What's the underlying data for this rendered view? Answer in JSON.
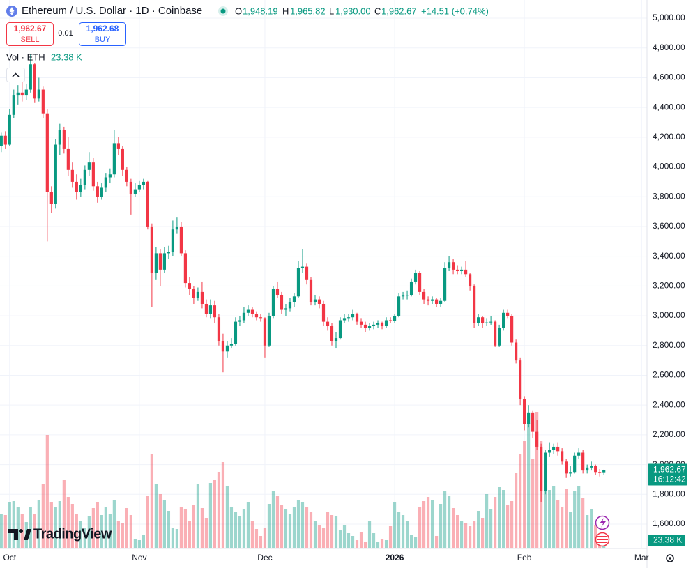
{
  "header": {
    "symbol": "Ethereum / U.S. Dollar · 1D · Coinbase",
    "o_label": "O",
    "o": "1,948.19",
    "h_label": "H",
    "h": "1,965.82",
    "l_label": "L",
    "l": "1,930.00",
    "c_label": "C",
    "c": "1,962.67",
    "change": "+14.51 (+0.74%)"
  },
  "trade": {
    "sell_price": "1,962.67",
    "sell": "SELL",
    "spread": "0.01",
    "buy_price": "1,962.68",
    "buy": "BUY"
  },
  "volume_legend": {
    "label": "Vol · ETH",
    "value": "23.38 K"
  },
  "price_tag": {
    "price": "1,962.67",
    "countdown": "16:12:42"
  },
  "volume_tag": "23.38 K",
  "logo": "TradingView",
  "chart_data": {
    "type": "candlestick",
    "up_color": "#089981",
    "down_color": "#f23645",
    "grid": true,
    "xlim": [
      -0.3,
      154.3
    ],
    "ylim": [
      1436,
      5122
    ],
    "volume_lim": [
      0,
      1574000
    ],
    "xticks": [
      {
        "value": 2,
        "label": "Oct"
      },
      {
        "value": 33,
        "label": "Nov"
      },
      {
        "value": 63,
        "label": "Dec"
      },
      {
        "value": 94,
        "label": "2026"
      },
      {
        "value": 125,
        "label": "Feb"
      },
      {
        "value": 153,
        "label": "Mar"
      }
    ],
    "yticks": [
      {
        "value": 1600,
        "label": "1,600.00"
      },
      {
        "value": 1800,
        "label": "1,800.00"
      },
      {
        "value": 2000,
        "label": "2,000.00"
      },
      {
        "value": 2200,
        "label": "2,200.00"
      },
      {
        "value": 2400,
        "label": "2,400.00"
      },
      {
        "value": 2600,
        "label": "2,600.00"
      },
      {
        "value": 2800,
        "label": "2,800.00"
      },
      {
        "value": 3000,
        "label": "3,000.00"
      },
      {
        "value": 3200,
        "label": "3,200.00"
      },
      {
        "value": 3400,
        "label": "3,400.00"
      },
      {
        "value": 3600,
        "label": "3,600.00"
      },
      {
        "value": 3800,
        "label": "3,800.00"
      },
      {
        "value": 4000,
        "label": "4,000.00"
      },
      {
        "value": 4200,
        "label": "4,200.00"
      },
      {
        "value": 4400,
        "label": "4,400.00"
      },
      {
        "value": 4600,
        "label": "4,600.00"
      },
      {
        "value": 4800,
        "label": "4,800.00"
      },
      {
        "value": 5000,
        "label": "5,000.00"
      }
    ],
    "ohlc": [
      [
        4140,
        4230,
        4100,
        4210
      ],
      [
        4210,
        4240,
        4120,
        4150
      ],
      [
        4150,
        4390,
        4140,
        4350
      ],
      [
        4350,
        4520,
        4330,
        4480
      ],
      [
        4480,
        4550,
        4420,
        4500
      ],
      [
        4500,
        4600,
        4440,
        4480
      ],
      [
        4480,
        4560,
        4450,
        4520
      ],
      [
        4520,
        4760,
        4500,
        4690
      ],
      [
        4690,
        4700,
        4430,
        4460
      ],
      [
        4460,
        4600,
        4440,
        4520
      ],
      [
        4520,
        4540,
        4330,
        4360
      ],
      [
        4360,
        4390,
        3500,
        3830
      ],
      [
        3830,
        3870,
        3690,
        3750
      ],
      [
        3750,
        4190,
        3720,
        4150
      ],
      [
        4150,
        4290,
        4080,
        4250
      ],
      [
        4250,
        4270,
        4090,
        4120
      ],
      [
        4120,
        4200,
        3940,
        3980
      ],
      [
        3980,
        4030,
        3860,
        3900
      ],
      [
        3900,
        3950,
        3780,
        3830
      ],
      [
        3830,
        3920,
        3800,
        3880
      ],
      [
        3880,
        4010,
        3850,
        3980
      ],
      [
        3980,
        4100,
        3940,
        4030
      ],
      [
        4030,
        4060,
        3840,
        3870
      ],
      [
        3870,
        3900,
        3760,
        3800
      ],
      [
        3800,
        3890,
        3780,
        3860
      ],
      [
        3860,
        3960,
        3830,
        3930
      ],
      [
        3930,
        3990,
        3890,
        3950
      ],
      [
        3950,
        4250,
        3930,
        4160
      ],
      [
        4160,
        4200,
        4080,
        4120
      ],
      [
        4120,
        4140,
        3940,
        3980
      ],
      [
        3980,
        4000,
        3870,
        3900
      ],
      [
        3900,
        3920,
        3680,
        3820
      ],
      [
        3820,
        3890,
        3800,
        3850
      ],
      [
        3850,
        3910,
        3830,
        3880
      ],
      [
        3880,
        3920,
        3850,
        3900
      ],
      [
        3900,
        3910,
        3580,
        3600
      ],
      [
        3600,
        3620,
        3060,
        3290
      ],
      [
        3290,
        3460,
        3240,
        3420
      ],
      [
        3420,
        3450,
        3200,
        3310
      ],
      [
        3310,
        3460,
        3290,
        3420
      ],
      [
        3420,
        3470,
        3380,
        3430
      ],
      [
        3430,
        3640,
        3400,
        3580
      ],
      [
        3580,
        3660,
        3550,
        3600
      ],
      [
        3600,
        3630,
        3400,
        3420
      ],
      [
        3420,
        3440,
        3190,
        3220
      ],
      [
        3220,
        3260,
        3140,
        3180
      ],
      [
        3180,
        3200,
        3080,
        3120
      ],
      [
        3120,
        3190,
        3100,
        3160
      ],
      [
        3160,
        3230,
        3050,
        3080
      ],
      [
        3080,
        3110,
        2990,
        3010
      ],
      [
        3010,
        3110,
        2980,
        3070
      ],
      [
        3070,
        3100,
        2950,
        2990
      ],
      [
        2990,
        3010,
        2800,
        2830
      ],
      [
        2830,
        2880,
        2620,
        2760
      ],
      [
        2760,
        2830,
        2720,
        2800
      ],
      [
        2800,
        2850,
        2780,
        2810
      ],
      [
        2810,
        2990,
        2800,
        2960
      ],
      [
        2960,
        3000,
        2930,
        2970
      ],
      [
        2970,
        3060,
        2950,
        3020
      ],
      [
        3020,
        3070,
        3000,
        3040
      ],
      [
        3040,
        3060,
        2990,
        3010
      ],
      [
        3010,
        3030,
        2970,
        2990
      ],
      [
        2990,
        3010,
        2960,
        2980
      ],
      [
        2980,
        2990,
        2720,
        2800
      ],
      [
        2800,
        3020,
        2790,
        3000
      ],
      [
        3000,
        3200,
        2980,
        3180
      ],
      [
        3180,
        3230,
        3120,
        3140
      ],
      [
        3140,
        3160,
        3010,
        3040
      ],
      [
        3040,
        3080,
        3000,
        3050
      ],
      [
        3050,
        3120,
        3030,
        3090
      ],
      [
        3090,
        3150,
        3060,
        3130
      ],
      [
        3130,
        3370,
        3120,
        3320
      ],
      [
        3320,
        3450,
        3290,
        3330
      ],
      [
        3330,
        3350,
        3210,
        3240
      ],
      [
        3240,
        3260,
        3070,
        3090
      ],
      [
        3090,
        3140,
        3070,
        3110
      ],
      [
        3110,
        3130,
        3050,
        3080
      ],
      [
        3080,
        3100,
        2930,
        2960
      ],
      [
        2960,
        2990,
        2900,
        2930
      ],
      [
        2930,
        2950,
        2800,
        2830
      ],
      [
        2830,
        2890,
        2780,
        2850
      ],
      [
        2850,
        2990,
        2840,
        2970
      ],
      [
        2970,
        3010,
        2950,
        2980
      ],
      [
        2980,
        3010,
        2960,
        2990
      ],
      [
        2990,
        3040,
        2970,
        3010
      ],
      [
        3010,
        3020,
        2940,
        2960
      ],
      [
        2960,
        2980,
        2920,
        2940
      ],
      [
        2940,
        2960,
        2890,
        2920
      ],
      [
        2920,
        2950,
        2900,
        2930
      ],
      [
        2930,
        2960,
        2910,
        2940
      ],
      [
        2940,
        2970,
        2920,
        2950
      ],
      [
        2950,
        2960,
        2910,
        2930
      ],
      [
        2930,
        2990,
        2920,
        2970
      ],
      [
        2970,
        2990,
        2950,
        2965
      ],
      [
        2965,
        3010,
        2950,
        3000
      ],
      [
        3000,
        3150,
        2990,
        3130
      ],
      [
        3130,
        3160,
        3110,
        3135
      ],
      [
        3135,
        3170,
        3110,
        3140
      ],
      [
        3140,
        3250,
        3130,
        3230
      ],
      [
        3230,
        3310,
        3210,
        3290
      ],
      [
        3290,
        3300,
        3140,
        3160
      ],
      [
        3160,
        3180,
        3080,
        3110
      ],
      [
        3110,
        3130,
        3070,
        3100
      ],
      [
        3100,
        3130,
        3080,
        3110
      ],
      [
        3110,
        3120,
        3060,
        3080
      ],
      [
        3080,
        3120,
        3060,
        3100
      ],
      [
        3100,
        3360,
        3090,
        3320
      ],
      [
        3320,
        3400,
        3300,
        3360
      ],
      [
        3360,
        3380,
        3280,
        3310
      ],
      [
        3310,
        3340,
        3280,
        3300
      ],
      [
        3300,
        3330,
        3280,
        3310
      ],
      [
        3310,
        3370,
        3260,
        3280
      ],
      [
        3280,
        3290,
        3170,
        3200
      ],
      [
        3200,
        3210,
        2920,
        2950
      ],
      [
        2950,
        3010,
        2930,
        2990
      ],
      [
        2990,
        3000,
        2920,
        2950
      ],
      [
        2950,
        2980,
        2930,
        2955
      ],
      [
        2955,
        3000,
        2940,
        2960
      ],
      [
        2960,
        2970,
        2790,
        2800
      ],
      [
        2800,
        2940,
        2790,
        2920
      ],
      [
        2920,
        3040,
        2900,
        3020
      ],
      [
        3020,
        3040,
        2980,
        3000
      ],
      [
        3000,
        3010,
        2800,
        2820
      ],
      [
        2820,
        2840,
        2680,
        2700
      ],
      [
        2700,
        2720,
        2400,
        2440
      ],
      [
        2440,
        2460,
        2230,
        2270
      ],
      [
        2270,
        2400,
        2250,
        2350
      ],
      [
        2350,
        2360,
        2180,
        2220
      ],
      [
        2220,
        2300,
        2100,
        2120
      ],
      [
        2120,
        2140,
        1750,
        1820
      ],
      [
        1820,
        2100,
        1800,
        2080
      ],
      [
        2080,
        2150,
        2050,
        2100
      ],
      [
        2100,
        2140,
        2070,
        2120
      ],
      [
        2120,
        2150,
        2060,
        2090
      ],
      [
        2090,
        2110,
        2000,
        2020
      ],
      [
        2020,
        2040,
        1910,
        1940
      ],
      [
        1940,
        1990,
        1920,
        1950
      ],
      [
        1950,
        2080,
        1940,
        2060
      ],
      [
        2060,
        2110,
        2040,
        2080
      ],
      [
        2080,
        2100,
        1940,
        1960
      ],
      [
        1960,
        2000,
        1940,
        1980
      ],
      [
        1980,
        2020,
        1960,
        1990
      ],
      [
        1990,
        2000,
        1930,
        1950
      ],
      [
        1950,
        1970,
        1920,
        1948.19
      ],
      [
        1948.19,
        1965.82,
        1930,
        1962.67
      ]
    ],
    "volume": [
      100000,
      96000,
      132000,
      136000,
      120000,
      100000,
      76000,
      120000,
      100000,
      140000,
      184000,
      326000,
      132000,
      120000,
      136000,
      196000,
      148000,
      128000,
      100000,
      80000,
      60000,
      92000,
      116000,
      132000,
      96000,
      120000,
      100000,
      140000,
      80000,
      72000,
      116000,
      96000,
      28000,
      24000,
      40000,
      152000,
      270000,
      184000,
      156000,
      140000,
      108000,
      60000,
      56000,
      120000,
      112000,
      80000,
      124000,
      184000,
      116000,
      88000,
      188000,
      196000,
      220000,
      248000,
      180000,
      120000,
      104000,
      92000,
      112000,
      132000,
      80000,
      56000,
      36000,
      60000,
      128000,
      164000,
      152000,
      124000,
      112000,
      100000,
      120000,
      140000,
      132000,
      120000,
      104000,
      80000,
      68000,
      60000,
      104000,
      96000,
      92000,
      52000,
      68000,
      44000,
      36000,
      24000,
      48000,
      20000,
      80000,
      44000,
      20000,
      28000,
      24000,
      64000,
      132000,
      104000,
      96000,
      80000,
      40000,
      32000,
      120000,
      136000,
      148000,
      140000,
      36000,
      128000,
      164000,
      152000,
      116000,
      96000,
      80000,
      72000,
      64000,
      80000,
      108000,
      88000,
      156000,
      112000,
      148000,
      176000,
      168000,
      124000,
      136000,
      216000,
      272000,
      308000,
      360000,
      256000,
      392000,
      308000,
      228000,
      168000,
      180000,
      140000,
      120000,
      172000,
      104000,
      164000,
      180000,
      144000,
      96000,
      112000,
      68000,
      40000,
      23380
    ]
  }
}
